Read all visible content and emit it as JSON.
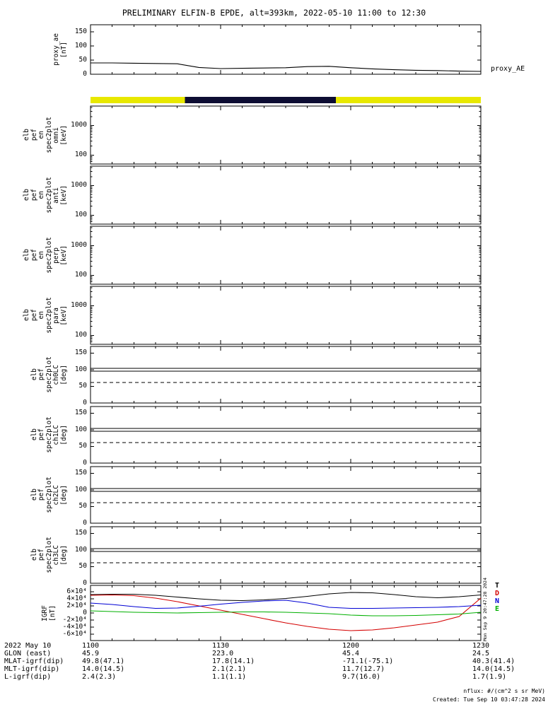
{
  "title": "PRELIMINARY ELFIN-B EPDE, alt=393km, 2022-05-10 11:00 to 12:30",
  "footer": {
    "nflux_note": "nflux: #/(cm^2 s sr MeV)",
    "created": "Created: Tue Sep 10 03:47:28 2024",
    "side_timestamp": "Mon Sep  9 20:47:28 2024"
  },
  "bottom_table": {
    "rows": [
      {
        "label": "2022 May 10",
        "values": [
          "1100",
          "1130",
          "1200",
          "1230"
        ]
      },
      {
        "label": "GLON (east)",
        "values": [
          "45.9",
          "223.0",
          "45.4",
          "24.5"
        ]
      },
      {
        "label": "MLAT-igrf(dip)",
        "values": [
          "49.8(47.1)",
          "17.8(14.1)",
          "-71.1(-75.1)",
          "40.3(41.4)"
        ]
      },
      {
        "label": "MLT-igrf(dip)",
        "values": [
          "14.0(14.5)",
          "2.1(2.1)",
          "11.7(12.7)",
          "14.0(14.5)"
        ]
      },
      {
        "label": "L-igrf(dip)",
        "values": [
          "2.4(2.3)",
          "1.1(1.1)",
          "9.7(16.0)",
          "1.7(1.9)"
        ]
      }
    ]
  },
  "chart_data": {
    "xaxis": {
      "range_minutes": [
        0,
        90
      ],
      "major_ticks_minutes": [
        0,
        30,
        60,
        90
      ],
      "major_tick_labels": [
        "1100",
        "1130",
        "1200",
        "1230"
      ],
      "minor_tick_every_minutes": 5
    },
    "panels": [
      {
        "id": "proxy_ae",
        "type": "line",
        "scale": "linear",
        "ylabel_lines": [
          "proxy_ae",
          "[nT]"
        ],
        "right_label": "proxy_AE",
        "ylim": [
          0,
          175
        ],
        "yticks": [
          0,
          50,
          100,
          150
        ],
        "x": [
          0,
          5,
          10,
          15,
          20,
          25,
          30,
          35,
          40,
          45,
          50,
          55,
          60,
          65,
          70,
          75,
          80,
          85,
          90
        ],
        "series": [
          {
            "name": "proxy_AE",
            "color": "#000000",
            "values": [
              40,
              40,
              39,
              38,
              37,
              24,
              20,
              21,
              22,
              23,
              27,
              28,
              23,
              19,
              16,
              14,
              13,
              11,
              10
            ]
          }
        ]
      },
      {
        "id": "availability",
        "type": "strip",
        "segments": [
          {
            "from_min": 0.0,
            "to_min": 21.8,
            "color": "#e8e800"
          },
          {
            "from_min": 21.8,
            "to_min": 56.6,
            "color": "#0d0d33"
          },
          {
            "from_min": 56.6,
            "to_min": 90.0,
            "color": "#e8e800"
          }
        ]
      },
      {
        "id": "spec_omni",
        "type": "spectrogram",
        "scale": "log",
        "empty": true,
        "ylabel_lines": [
          "elb",
          "pef",
          "en",
          "spec2plot",
          "omni",
          "[keV]"
        ],
        "ylim": [
          50,
          4500
        ],
        "yticks": [
          100,
          1000
        ]
      },
      {
        "id": "spec_anti",
        "type": "spectrogram",
        "scale": "log",
        "empty": true,
        "ylabel_lines": [
          "elb",
          "pef",
          "en",
          "spec2plot",
          "anti",
          "[keV]"
        ],
        "ylim": [
          50,
          4500
        ],
        "yticks": [
          100,
          1000
        ]
      },
      {
        "id": "spec_perp",
        "type": "spectrogram",
        "scale": "log",
        "empty": true,
        "ylabel_lines": [
          "elb",
          "pef",
          "en",
          "spec2plot",
          "perp",
          "[keV]"
        ],
        "ylim": [
          50,
          4500
        ],
        "yticks": [
          100,
          1000
        ]
      },
      {
        "id": "spec_para",
        "type": "spectrogram",
        "scale": "log",
        "empty": true,
        "ylabel_lines": [
          "elb",
          "pef",
          "en",
          "spec2plot",
          "para",
          "[keV]"
        ],
        "ylim": [
          50,
          4500
        ],
        "yticks": [
          100,
          1000
        ]
      },
      {
        "id": "pa_ch0",
        "type": "line-overlay",
        "scale": "linear",
        "ylabel_lines": [
          "elb",
          "pef",
          "spec2plot",
          "ch0LC",
          "[deg]"
        ],
        "ylim": [
          0,
          170
        ],
        "yticks": [
          0,
          50,
          100,
          150
        ],
        "lines": [
          {
            "value": 104,
            "style": "solid"
          },
          {
            "value": 96,
            "style": "solid"
          },
          {
            "value": 62,
            "style": "dashed"
          }
        ]
      },
      {
        "id": "pa_ch1",
        "type": "line-overlay",
        "scale": "linear",
        "ylabel_lines": [
          "elb",
          "pef",
          "spec2plot",
          "ch1LC",
          "[deg]"
        ],
        "ylim": [
          0,
          170
        ],
        "yticks": [
          0,
          50,
          100,
          150
        ],
        "lines": [
          {
            "value": 104,
            "style": "solid"
          },
          {
            "value": 96,
            "style": "solid"
          },
          {
            "value": 62,
            "style": "dashed"
          }
        ]
      },
      {
        "id": "pa_ch2",
        "type": "line-overlay",
        "scale": "linear",
        "ylabel_lines": [
          "elb",
          "pef",
          "spec2plot",
          "ch2LC",
          "[deg]"
        ],
        "ylim": [
          0,
          170
        ],
        "yticks": [
          0,
          50,
          100,
          150
        ],
        "lines": [
          {
            "value": 104,
            "style": "solid"
          },
          {
            "value": 96,
            "style": "solid"
          },
          {
            "value": 62,
            "style": "dashed"
          }
        ]
      },
      {
        "id": "pa_ch3",
        "type": "line-overlay",
        "scale": "linear",
        "ylabel_lines": [
          "elb",
          "pef",
          "spec2plot",
          "ch3LC",
          "[deg]"
        ],
        "ylim": [
          0,
          170
        ],
        "yticks": [
          0,
          50,
          100,
          150
        ],
        "lines": [
          {
            "value": 104,
            "style": "solid"
          },
          {
            "value": 96,
            "style": "solid"
          },
          {
            "value": 62,
            "style": "dashed"
          }
        ]
      },
      {
        "id": "igrf",
        "type": "line",
        "scale": "linear",
        "ylabel_lines": [
          "IGRF",
          "[nT]"
        ],
        "ylim": [
          -78000,
          78000
        ],
        "yticks": [
          {
            "v": 60000,
            "label": "6×10⁴"
          },
          {
            "v": 40000,
            "label": "4×10⁴"
          },
          {
            "v": 20000,
            "label": "2×10⁴"
          },
          {
            "v": 0,
            "label": "0"
          },
          {
            "v": -20000,
            "label": "-2×10⁴"
          },
          {
            "v": -40000,
            "label": "-4×10⁴"
          },
          {
            "v": -60000,
            "label": "-6×10⁴"
          }
        ],
        "x": [
          0,
          5,
          10,
          15,
          20,
          25,
          30,
          35,
          40,
          45,
          50,
          55,
          60,
          65,
          70,
          75,
          80,
          85,
          90
        ],
        "series": [
          {
            "name": "T",
            "color": "#000000",
            "values": [
              52000,
              53000,
              53000,
              50000,
              45000,
              40000,
              36000,
              35000,
              37000,
              41000,
              47000,
              54000,
              58000,
              57000,
              52000,
              46000,
              43000,
              46000,
              51000
            ]
          },
          {
            "name": "D",
            "color": "#d40000",
            "values": [
              50000,
              51000,
              49000,
              42000,
              32000,
              20000,
              8000,
              -4000,
              -16000,
              -28000,
              -38000,
              -46000,
              -50000,
              -48000,
              -42000,
              -34000,
              -26000,
              -10000,
              42000
            ]
          },
          {
            "name": "N",
            "color": "#0000d4",
            "values": [
              28000,
              24000,
              18000,
              13000,
              14000,
              19000,
              25000,
              30000,
              34000,
              36000,
              28000,
              16000,
              13000,
              13000,
              14000,
              15000,
              16000,
              18000,
              22000
            ]
          },
          {
            "name": "E",
            "color": "#00b000",
            "values": [
              6000,
              4000,
              2000,
              1000,
              0,
              1000,
              2000,
              3000,
              3000,
              2000,
              0,
              -2000,
              -6000,
              -8000,
              -8000,
              -7000,
              -5000,
              -3000,
              2000
            ]
          }
        ],
        "legend": [
          {
            "label": "T",
            "color": "#000000"
          },
          {
            "label": "D",
            "color": "#d40000"
          },
          {
            "label": "N",
            "color": "#0000d4"
          },
          {
            "label": "E",
            "color": "#00b000"
          }
        ]
      }
    ]
  }
}
